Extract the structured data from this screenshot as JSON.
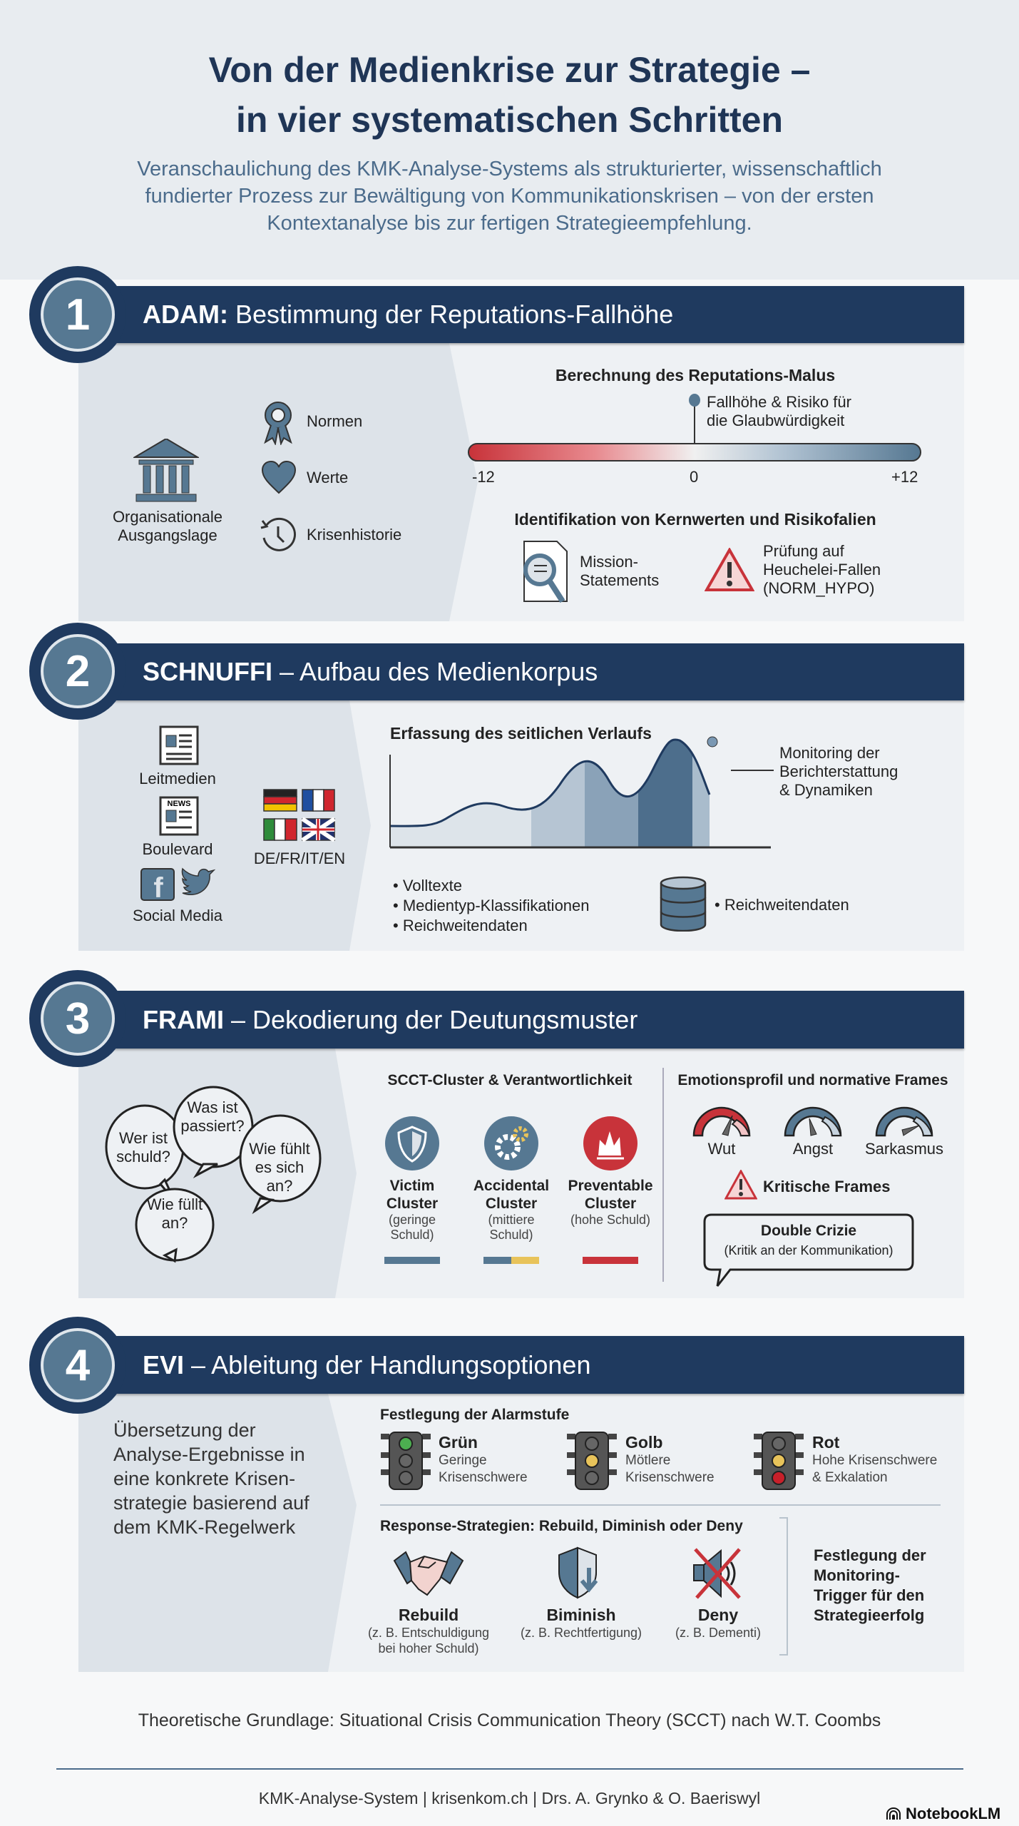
{
  "header": {
    "title_line1": "Von der Medienkrise zur Strategie –",
    "title_line2": "in vier systematischen Schritten",
    "subtitle_lines": [
      "Veranschaulichung des KMK-Analyse-Systems als strukturierter, wissenschaftlich",
      "fundierter Prozess zur Bewältigung von Kommunikationskrisen – von der ersten",
      "Kontextanalyse bis zur fertigen Strategieempfehlung."
    ]
  },
  "colors": {
    "navy": "#1f3a5f",
    "steel": "#567892",
    "red": "#c8333a",
    "yellow": "#e8c35a",
    "green": "#4caf50"
  },
  "s1": {
    "number": "1",
    "title_bold": "ADAM:",
    "title": "Bestimmung der Reputations-Fallhöhe",
    "org_label": [
      "Organisationale",
      "Ausgangslage"
    ],
    "items": [
      "Normen",
      "Werte",
      "Krisenhistorie"
    ],
    "malus_title": "Berechnung des Reputations-Malus",
    "marker_label": [
      "Fallhöhe & Risiko für",
      "die Glaubwürdigkeit"
    ],
    "scale": {
      "min": "-12",
      "mid": "0",
      "max": "+12",
      "marker_value": 0
    },
    "ident_title": "Identifikation von Kernwerten und Risikofalien",
    "mission": [
      "Mission-",
      "Statements"
    ],
    "hypo": [
      "Prüfung auf",
      "Heuchelei-Fallen",
      "(NORM_HYPO)"
    ]
  },
  "s2": {
    "number": "2",
    "title_bold": "SCHNUFFI",
    "title": "– Aufbau des Medienkorpus",
    "media": [
      "Leitmedien",
      "Boulevard",
      "Social Media"
    ],
    "languages": "DE/FR/IT/EN",
    "chart_title": "Erfassung des seitlichen Verlaufs",
    "annotation": [
      "Monitoring der",
      "Berichterstattung",
      "& Dynamiken"
    ],
    "bullets": [
      "• Volltexte",
      "• Medientyp-Klassifikationen",
      "• Reichweitendaten"
    ],
    "db_label": "• Reichweitendaten"
  },
  "s3": {
    "number": "3",
    "title_bold": "FRAMI",
    "title": "– Dekodierung der Deutungsmuster",
    "bubbles": [
      "Was ist passiert?",
      "Wer ist schuld?",
      "Wie fühlt es sich an?",
      "Wie füllt an?"
    ],
    "scct_title": "SCCT-Cluster & Verantwortlichkeit",
    "clusters": [
      {
        "name": "Victim Cluster",
        "sub": "(geringe Schuld)"
      },
      {
        "name": "Accidental Cluster",
        "sub": "(mittiere Schuld)"
      },
      {
        "name": "Preventable Cluster",
        "sub": "(hohe Schuld)"
      }
    ],
    "emo_title": "Emotionsprofil und normative Frames",
    "gauges": [
      "Wut",
      "Angst",
      "Sarkasmus"
    ],
    "critical": "Kritische Frames",
    "double_title": "Double Crizie",
    "double_sub": "(Kritik an der Kommunikation)"
  },
  "s4": {
    "number": "4",
    "title_bold": "EVI",
    "title": "– Ableitung der Handlungsoptionen",
    "left_text": [
      "Übersetzung der",
      "Analyse-Ergebnisse in",
      "eine konkrete Krisen-",
      "strategie basierend auf",
      "dem KMK-Regelwerk"
    ],
    "alarm_title": "Festlegung der Alarmstufe",
    "alarms": [
      {
        "name": "Grün",
        "sub1": "Geringe",
        "sub2": "Krisenschwere"
      },
      {
        "name": "Golb",
        "sub1": "Mötlere",
        "sub2": "Krisenschwere"
      },
      {
        "name": "Rot",
        "sub1": "Hohe Krisenschwere",
        "sub2": "& Exkalation"
      }
    ],
    "response_title": "Response-Strategien: Rebuild, Diminish oder Deny",
    "responses": [
      {
        "name": "Rebuild",
        "sub1": "(z. B. Entschuldigung",
        "sub2": "bei hoher Schuld)"
      },
      {
        "name": "Biminish",
        "sub1": "(z. B. Rechtfertigung)",
        "sub2": ""
      },
      {
        "name": "Deny",
        "sub1": "(z. B. Dementi)",
        "sub2": ""
      }
    ],
    "trigger": [
      "Festlegung der",
      "Monitoring-",
      "Trigger für den",
      "Strategieerfolg"
    ]
  },
  "footer": {
    "theory": "Theoretische Grundlage: Situational Crisis Communication Theory (SCCT) nach W.T. Coombs",
    "credits": "KMK-Analyse-System | krisenkom.ch | Drs. A. Grynko & O. Baeriswyl",
    "brand": "NotebookLM"
  }
}
